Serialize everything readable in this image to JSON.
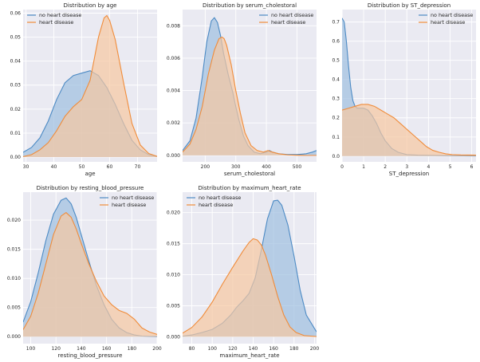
{
  "chart_data": [
    {
      "type": "area",
      "title": "Distribution by age",
      "xlabel": "age",
      "xlim": [
        29,
        77
      ],
      "ylim": [
        -0.002,
        0.0615
      ],
      "xticks": [
        30,
        40,
        50,
        60,
        70
      ],
      "yticks": [
        0.0,
        0.01,
        0.02,
        0.03,
        0.04,
        0.05,
        0.06
      ],
      "ytick_decimals": 2,
      "legend": "top-left",
      "series": [
        {
          "name": "no heart disease",
          "color": "#4c8ac4",
          "fill": "#9ebfdf",
          "x": [
            29,
            32,
            35,
            38,
            41,
            44,
            47,
            50,
            53,
            56,
            59,
            62,
            65,
            68,
            71,
            74,
            77
          ],
          "y": [
            0.002,
            0.004,
            0.008,
            0.015,
            0.024,
            0.031,
            0.034,
            0.035,
            0.036,
            0.034,
            0.029,
            0.022,
            0.014,
            0.007,
            0.003,
            0.001,
            0.0003
          ]
        },
        {
          "name": "heart disease",
          "color": "#f08c3a",
          "fill": "#f6c7a1",
          "x": [
            29,
            32,
            35,
            38,
            41,
            44,
            47,
            50,
            53,
            56,
            58,
            59,
            60,
            62,
            65,
            68,
            71,
            74,
            77
          ],
          "y": [
            0.0002,
            0.001,
            0.003,
            0.006,
            0.011,
            0.017,
            0.021,
            0.024,
            0.032,
            0.05,
            0.058,
            0.059,
            0.057,
            0.049,
            0.031,
            0.014,
            0.005,
            0.0015,
            0.0003
          ]
        }
      ]
    },
    {
      "type": "area",
      "title": "Distribution by serum_cholestoral",
      "xlabel": "serum_cholestoral",
      "xlim": [
        126,
        564
      ],
      "ylim": [
        -0.0004,
        0.009
      ],
      "xticks": [
        200,
        300,
        400,
        500
      ],
      "yticks": [
        0.0,
        0.002,
        0.004,
        0.006,
        0.008
      ],
      "ytick_decimals": 3,
      "legend": "top-right",
      "series": [
        {
          "name": "no heart disease",
          "color": "#4c8ac4",
          "fill": "#9ebfdf",
          "x": [
            126,
            150,
            170,
            190,
            205,
            220,
            230,
            240,
            250,
            260,
            275,
            290,
            300,
            310,
            325,
            340,
            360,
            380,
            400,
            410,
            420,
            440,
            470,
            500,
            530,
            550,
            564
          ],
          "y": [
            0.0003,
            0.0009,
            0.0023,
            0.0048,
            0.007,
            0.0083,
            0.0085,
            0.0082,
            0.0074,
            0.0063,
            0.005,
            0.0039,
            0.003,
            0.0022,
            0.0012,
            0.0006,
            0.0002,
            0.0001,
            0.0002,
            0.0003,
            0.0002,
            0.0001,
            5e-05,
            5e-05,
            0.0001,
            0.0002,
            0.0003
          ]
        },
        {
          "name": "heart disease",
          "color": "#f08c3a",
          "fill": "#f6c7a1",
          "x": [
            126,
            150,
            170,
            190,
            210,
            230,
            245,
            255,
            262,
            270,
            285,
            300,
            315,
            330,
            350,
            370,
            390,
            405,
            420,
            440,
            470,
            500,
            530,
            564
          ],
          "y": [
            0.0002,
            0.0007,
            0.0016,
            0.003,
            0.005,
            0.0065,
            0.0072,
            0.0073,
            0.0072,
            0.0068,
            0.0056,
            0.004,
            0.0026,
            0.0014,
            0.0006,
            0.0003,
            0.0002,
            0.0003,
            0.0002,
            0.0001,
            3e-05,
            1e-05,
            0.0,
            0.0
          ]
        }
      ]
    },
    {
      "type": "area",
      "title": "Distribution by ST_depression",
      "xlabel": "ST_depression",
      "xlim": [
        0,
        6.2
      ],
      "ylim": [
        -0.03,
        0.765
      ],
      "xticks": [
        0,
        1,
        2,
        3,
        4,
        5,
        6
      ],
      "yticks": [
        0.0,
        0.1,
        0.2,
        0.3,
        0.4,
        0.5,
        0.6,
        0.7
      ],
      "ytick_decimals": 1,
      "legend": "top-right",
      "series": [
        {
          "name": "no heart disease",
          "color": "#4c8ac4",
          "fill": "#9ebfdf",
          "x": [
            0,
            0.1,
            0.2,
            0.3,
            0.4,
            0.5,
            0.6,
            0.7,
            0.8,
            0.9,
            1.0,
            1.2,
            1.4,
            1.6,
            1.8,
            2.0,
            2.3,
            2.6,
            3.0,
            3.5,
            4.0,
            5.0,
            6.2
          ],
          "y": [
            0.72,
            0.7,
            0.6,
            0.47,
            0.36,
            0.29,
            0.26,
            0.25,
            0.25,
            0.25,
            0.25,
            0.24,
            0.21,
            0.17,
            0.12,
            0.08,
            0.04,
            0.02,
            0.008,
            0.005,
            0.004,
            0.002,
            0.001
          ]
        },
        {
          "name": "heart disease",
          "color": "#f08c3a",
          "fill": "#f6c7a1",
          "x": [
            0,
            0.3,
            0.6,
            0.9,
            1.2,
            1.5,
            1.8,
            2.1,
            2.4,
            2.7,
            3.0,
            3.3,
            3.6,
            3.9,
            4.2,
            4.5,
            4.8,
            5.1,
            5.5,
            6.2
          ],
          "y": [
            0.24,
            0.25,
            0.26,
            0.27,
            0.27,
            0.26,
            0.24,
            0.22,
            0.2,
            0.17,
            0.14,
            0.11,
            0.08,
            0.05,
            0.03,
            0.02,
            0.012,
            0.008,
            0.006,
            0.005
          ]
        }
      ]
    },
    {
      "type": "area",
      "title": "Distribution by resting_blood_pressure",
      "xlabel": "resting_blood_pressure",
      "xlim": [
        94,
        200
      ],
      "ylim": [
        -0.0012,
        0.0248
      ],
      "xticks": [
        100,
        120,
        140,
        160,
        180,
        200
      ],
      "yticks": [
        0.0,
        0.005,
        0.01,
        0.015,
        0.02
      ],
      "ytick_decimals": 3,
      "legend": "top-right",
      "series": [
        {
          "name": "no heart disease",
          "color": "#4c8ac4",
          "fill": "#9ebfdf",
          "x": [
            94,
            100,
            106,
            112,
            118,
            124,
            128,
            132,
            136,
            140,
            146,
            152,
            158,
            164,
            170,
            176,
            182,
            188,
            194,
            200
          ],
          "y": [
            0.0025,
            0.006,
            0.011,
            0.0165,
            0.021,
            0.0234,
            0.0238,
            0.0228,
            0.0205,
            0.0175,
            0.013,
            0.0088,
            0.0055,
            0.003,
            0.0015,
            0.0007,
            0.0003,
            0.0001,
            5e-05,
            2e-05
          ]
        },
        {
          "name": "heart disease",
          "color": "#f08c3a",
          "fill": "#f6c7a1",
          "x": [
            94,
            100,
            106,
            112,
            118,
            124,
            128,
            132,
            136,
            140,
            146,
            152,
            158,
            164,
            170,
            176,
            182,
            188,
            194,
            200
          ],
          "y": [
            0.0012,
            0.0035,
            0.0075,
            0.0125,
            0.0175,
            0.0207,
            0.0213,
            0.0205,
            0.0185,
            0.016,
            0.0125,
            0.0095,
            0.007,
            0.0055,
            0.0045,
            0.004,
            0.003,
            0.0015,
            0.0008,
            0.0004
          ]
        }
      ]
    },
    {
      "type": "area",
      "title": "Distribution by maximum_heart_rate",
      "xlabel": "maximum_heart_rate",
      "xlim": [
        71,
        202
      ],
      "ylim": [
        -0.0011,
        0.0233
      ],
      "xticks": [
        80,
        100,
        120,
        140,
        160,
        180,
        200
      ],
      "yticks": [
        0.0,
        0.005,
        0.01,
        0.015,
        0.02
      ],
      "ytick_decimals": 3,
      "legend": "top-left",
      "series": [
        {
          "name": "no heart disease",
          "color": "#4c8ac4",
          "fill": "#9ebfdf",
          "x": [
            71,
            80,
            90,
            100,
            110,
            118,
            124,
            130,
            136,
            142,
            148,
            154,
            160,
            164,
            168,
            174,
            180,
            186,
            192,
            202
          ],
          "y": [
            0.0001,
            0.0003,
            0.0007,
            0.0012,
            0.0022,
            0.0035,
            0.0048,
            0.0058,
            0.007,
            0.0095,
            0.014,
            0.019,
            0.0219,
            0.022,
            0.0212,
            0.018,
            0.013,
            0.0075,
            0.0035,
            0.0008
          ]
        },
        {
          "name": "heart disease",
          "color": "#f08c3a",
          "fill": "#f6c7a1",
          "x": [
            71,
            80,
            90,
            100,
            110,
            120,
            130,
            136,
            140,
            144,
            148,
            152,
            158,
            164,
            170,
            176,
            182,
            190,
            202
          ],
          "y": [
            0.0006,
            0.0015,
            0.0032,
            0.0056,
            0.0085,
            0.0112,
            0.0138,
            0.0152,
            0.0158,
            0.0156,
            0.0148,
            0.0132,
            0.01,
            0.0065,
            0.0035,
            0.0016,
            0.0007,
            0.0002,
            5e-05
          ]
        }
      ]
    }
  ]
}
